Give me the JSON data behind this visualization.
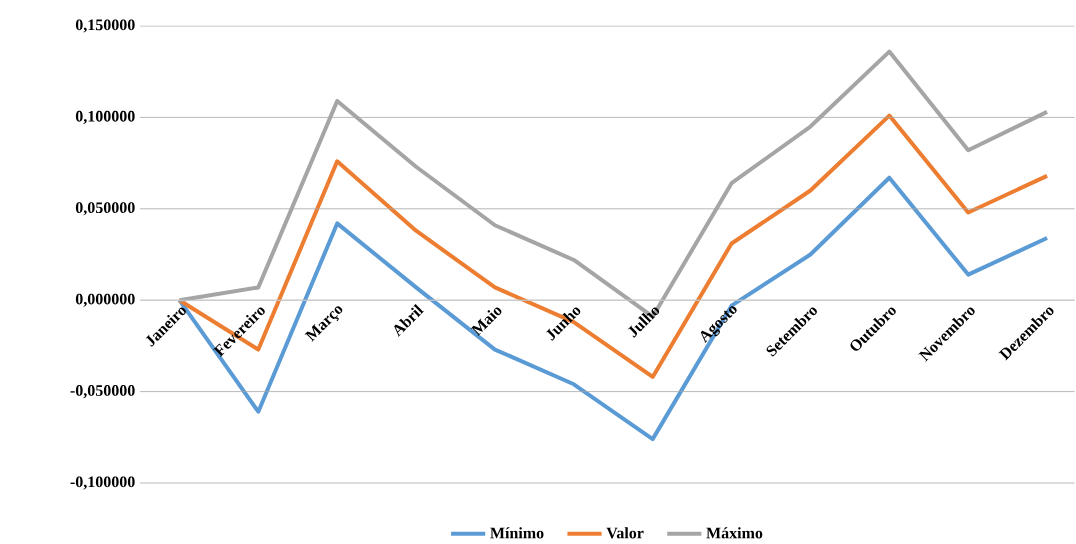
{
  "chart_data": {
    "type": "line",
    "categories": [
      "Janeiro",
      "Fevereiro",
      "Março",
      "Abril",
      "Maio",
      "Junho",
      "Julho",
      "Agosto",
      "Setembro",
      "Outubro",
      "Novembro",
      "Dezembro"
    ],
    "series": [
      {
        "name": "Mínimo",
        "color": "#5b9bd5",
        "values": [
          0,
          -0.061,
          0.042,
          0.007,
          -0.027,
          -0.046,
          -0.076,
          -0.003,
          0.025,
          0.067,
          0.014,
          0.034
        ]
      },
      {
        "name": "Valor",
        "color": "#ed7d31",
        "values": [
          0,
          -0.027,
          0.076,
          0.038,
          0.007,
          -0.012,
          -0.042,
          0.031,
          0.06,
          0.101,
          0.048,
          0.068
        ]
      },
      {
        "name": "Máximo",
        "color": "#a5a5a5",
        "values": [
          0,
          0.007,
          0.109,
          0.073,
          0.041,
          0.022,
          -0.009,
          0.064,
          0.095,
          0.136,
          0.082,
          0.103
        ]
      }
    ],
    "ylim": [
      -0.1,
      0.15
    ],
    "yticks": [
      {
        "value": -0.1,
        "label": "-0,100000"
      },
      {
        "value": -0.05,
        "label": "-0,050000"
      },
      {
        "value": 0,
        "label": "0,000000"
      },
      {
        "value": 0.05,
        "label": "0,050000"
      },
      {
        "value": 0.1,
        "label": "0,100000"
      },
      {
        "value": 0.15,
        "label": "0,150000"
      }
    ],
    "grid": "y",
    "legend": "bottom",
    "marker": "none",
    "line_style": "solid"
  }
}
